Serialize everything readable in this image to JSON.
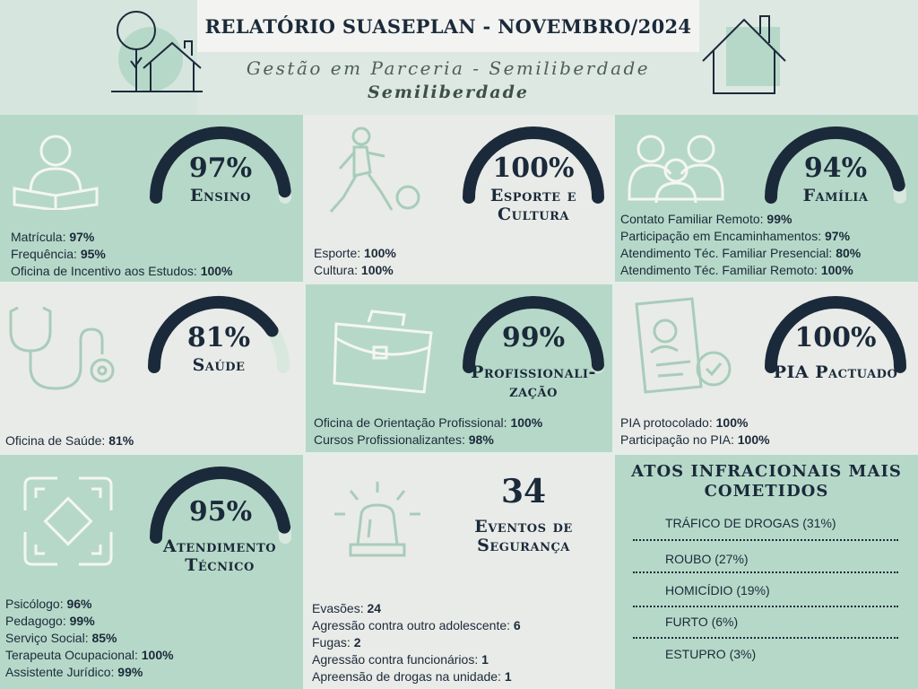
{
  "header": {
    "title": "RELATÓRIO SUASEPLAN - NOVEMBRO/2024",
    "subtitle": "Gestão em Parceria - Semiliberdade",
    "subtitle2": "Semiliberdade"
  },
  "colors": {
    "dark": "#1b2a3a",
    "green": "#b6d8c8",
    "grey": "#e9ebe8",
    "track": "#d8e8df"
  },
  "cards": {
    "ensino": {
      "pct": "97%",
      "value": 0.97,
      "label": "Ensino",
      "icon": "reading-person-icon",
      "lines": [
        {
          "k": "Matrícula: ",
          "v": "97%"
        },
        {
          "k": "Frequência: ",
          "v": "95%"
        },
        {
          "k": "Oficina de Incentivo aos Estudos: ",
          "v": "100%"
        }
      ]
    },
    "esporte": {
      "pct": "100%",
      "value": 1.0,
      "label1": "Esporte e",
      "label2": "Cultura",
      "icon": "soccer-player-icon",
      "lines": [
        {
          "k": "Esporte: ",
          "v": "100%"
        },
        {
          "k": "Cultura: ",
          "v": "100%"
        }
      ]
    },
    "familia": {
      "pct": "94%",
      "value": 0.94,
      "label": "Família",
      "icon": "family-icon",
      "lines": [
        {
          "k": "Contato Familiar Remoto: ",
          "v": "99%"
        },
        {
          "k": "Participação em Encaminhamentos: ",
          "v": "97%"
        },
        {
          "k": "Atendimento Téc. Familiar Presencial: ",
          "v": "80%"
        },
        {
          "k": "Atendimento Téc. Familiar Remoto: ",
          "v": "100%"
        }
      ]
    },
    "saude": {
      "pct": "81%",
      "value": 0.81,
      "label": "Saúde",
      "icon": "stethoscope-icon",
      "lines": [
        {
          "k": "Oficina de Saúde: ",
          "v": "81%"
        }
      ]
    },
    "prof": {
      "pct": "99%",
      "value": 0.99,
      "label1": "Profissionali-",
      "label2": "zação",
      "icon": "briefcase-icon",
      "lines": [
        {
          "k": "Oficina de Orientação Profissional: ",
          "v": "100%"
        },
        {
          "k": "Cursos Profissionalizantes: ",
          "v": "98%"
        }
      ]
    },
    "pia": {
      "pct": "100%",
      "value": 1.0,
      "label": "PIA Pactuado",
      "icon": "document-approved-icon",
      "lines": [
        {
          "k": "PIA protocolado: ",
          "v": "100%"
        },
        {
          "k": "Participação no PIA: ",
          "v": "100%"
        }
      ]
    },
    "atendimento": {
      "pct": "95%",
      "value": 0.95,
      "label1": "Atendimento",
      "label2": "Técnico",
      "icon": "joined-hands-icon",
      "lines": [
        {
          "k": "Psicólogo: ",
          "v": "96%"
        },
        {
          "k": "Pedagogo: ",
          "v": "99%"
        },
        {
          "k": "Serviço Social: ",
          "v": "85%"
        },
        {
          "k": "Terapeuta Ocupacional: ",
          "v": "100%"
        },
        {
          "k": "Assistente Jurídico: ",
          "v": "99%"
        }
      ]
    },
    "seguranca": {
      "count": "34",
      "label1": "Eventos de",
      "label2": "Segurança",
      "icon": "siren-icon",
      "lines": [
        {
          "k": "Evasões: ",
          "v": "24"
        },
        {
          "k": "Agressão contra outro adolescente: ",
          "v": "6"
        },
        {
          "k": "Fugas: ",
          "v": "2"
        },
        {
          "k": "Agressão contra funcionários: ",
          "v": "1"
        },
        {
          "k": "Apreensão de drogas na unidade: ",
          "v": "1"
        }
      ]
    },
    "atos": {
      "title1": "ATOS INFRACIONAIS MAIS",
      "title2": "COMETIDOS",
      "items": [
        "TRÁFICO DE DROGAS (31%)",
        "ROUBO (27%)",
        "HOMICÍDIO (19%)",
        "FURTO (6%)",
        "ESTUPRO (3%)"
      ]
    }
  }
}
